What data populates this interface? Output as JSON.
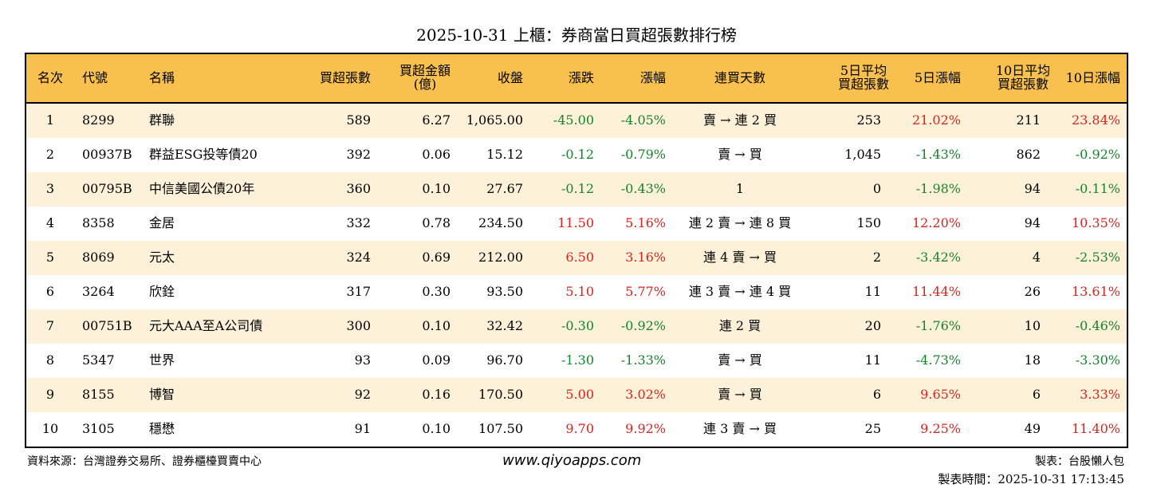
{
  "title": "2025-10-31 上櫃：券商當日買超張數排行榜",
  "colors": {
    "header_bg": "#f8c04f",
    "row_alt": "#fdf2d9",
    "up": "#e0201b",
    "down": "#12852a"
  },
  "columns": [
    "名次",
    "代號",
    "名稱",
    "買超張數",
    "買超金額\n(億)",
    "收盤",
    "漲跌",
    "漲幅",
    "連買天數",
    "5日平均\n買超張數",
    "5日漲幅",
    "10日平均\n買超張數",
    "10日漲幅"
  ],
  "rows": [
    [
      "1",
      "8299",
      "群聯",
      "589",
      "6.27",
      "1,065.00",
      "-45.00",
      "-4.05%",
      "賣 → 連 2 買",
      "253",
      "21.02%",
      "211",
      "23.84%"
    ],
    [
      "2",
      "00937B",
      "群益ESG投等債20",
      "392",
      "0.06",
      "15.12",
      "-0.12",
      "-0.79%",
      "賣 → 買",
      "1,045",
      "-1.43%",
      "862",
      "-0.92%"
    ],
    [
      "3",
      "00795B",
      "中信美國公債20年",
      "360",
      "0.10",
      "27.67",
      "-0.12",
      "-0.43%",
      "1",
      "0",
      "-1.98%",
      "94",
      "-0.11%"
    ],
    [
      "4",
      "8358",
      "金居",
      "332",
      "0.78",
      "234.50",
      "11.50",
      "5.16%",
      "連 2 賣 → 連 8 買",
      "150",
      "12.20%",
      "94",
      "10.35%"
    ],
    [
      "5",
      "8069",
      "元太",
      "324",
      "0.69",
      "212.00",
      "6.50",
      "3.16%",
      "連 4 賣 → 買",
      "2",
      "-3.42%",
      "4",
      "-2.53%"
    ],
    [
      "6",
      "3264",
      "欣銓",
      "317",
      "0.30",
      "93.50",
      "5.10",
      "5.77%",
      "連 3 賣 → 連 4 買",
      "11",
      "11.44%",
      "26",
      "13.61%"
    ],
    [
      "7",
      "00751B",
      "元大AAA至A公司債",
      "300",
      "0.10",
      "32.42",
      "-0.30",
      "-0.92%",
      "連 2 買",
      "20",
      "-1.76%",
      "10",
      "-0.46%"
    ],
    [
      "8",
      "5347",
      "世界",
      "93",
      "0.09",
      "96.70",
      "-1.30",
      "-1.33%",
      "賣 → 買",
      "11",
      "-4.73%",
      "18",
      "-3.30%"
    ],
    [
      "9",
      "8155",
      "博智",
      "92",
      "0.16",
      "170.50",
      "5.00",
      "3.02%",
      "賣 → 買",
      "6",
      "9.65%",
      "6",
      "3.33%"
    ],
    [
      "10",
      "3105",
      "穩懋",
      "91",
      "0.10",
      "107.50",
      "9.70",
      "9.92%",
      "連 3 賣 → 買",
      "25",
      "9.25%",
      "49",
      "11.40%"
    ]
  ],
  "footer": {
    "source": "資料來源：台灣證券交易所、證券櫃檯買賣中心",
    "site": "www.qiyoapps.com",
    "maker": "製表：台股懶人包",
    "time": "製表時間：2025-10-31 17:13:45"
  }
}
